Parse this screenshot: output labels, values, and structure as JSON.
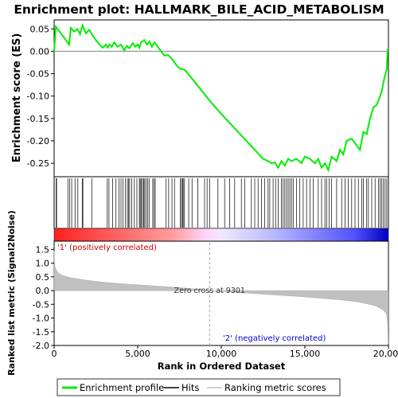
{
  "chart_data": [
    {
      "type": "line",
      "title": "Enrichment plot: HALLMARK_BILE_ACID_METABOLISM",
      "ylabel": "Enrichment score (ES)",
      "ylim": [
        -0.28,
        0.07
      ],
      "yticks": [
        0.05,
        0.0,
        -0.05,
        -0.1,
        -0.15,
        -0.2,
        -0.25
      ],
      "ytick_labels": [
        "0.05",
        "0.00",
        "-0.05",
        "-0.10",
        "-0.15",
        "-0.20",
        "-0.25"
      ],
      "xlim": [
        0,
        20000
      ],
      "line_color": "#00ee00",
      "series": [
        {
          "name": "Enrichment profile",
          "x": [
            0,
            100,
            500,
            900,
            1000,
            1200,
            1400,
            1550,
            1700,
            1900,
            2100,
            2300,
            2600,
            2900,
            3100,
            3200,
            3300,
            3450,
            3600,
            3800,
            4000,
            4200,
            4350,
            4500,
            4700,
            4850,
            5000,
            5100,
            5200,
            5400,
            5550,
            5700,
            5850,
            6000,
            6200,
            6400,
            6600,
            6800,
            7000,
            7200,
            7400,
            7600,
            7750,
            7900,
            9301,
            10000,
            11000,
            12000,
            12500,
            12800,
            13000,
            13200,
            13400,
            13600,
            13800,
            14000,
            14200,
            14500,
            14800,
            15000,
            15300,
            15600,
            15800,
            16000,
            16200,
            16400,
            16600,
            16900,
            17100,
            17300,
            17500,
            17800,
            18100,
            18300,
            18500,
            18700,
            18900,
            19100,
            19300,
            19450,
            19600,
            19750,
            19900,
            19950
          ],
          "y": [
            0.0,
            0.055,
            0.035,
            0.015,
            0.052,
            0.044,
            0.05,
            0.038,
            0.058,
            0.04,
            0.048,
            0.035,
            0.02,
            0.008,
            0.015,
            0.008,
            0.015,
            0.01,
            0.02,
            0.01,
            0.015,
            0.002,
            0.012,
            0.007,
            0.018,
            0.01,
            0.015,
            0.008,
            0.02,
            0.025,
            0.015,
            0.022,
            0.01,
            0.02,
            0.01,
            0.0,
            -0.01,
            -0.008,
            -0.015,
            -0.025,
            -0.035,
            -0.04,
            -0.04,
            -0.045,
            -0.11,
            -0.14,
            -0.18,
            -0.22,
            -0.24,
            -0.245,
            -0.25,
            -0.248,
            -0.26,
            -0.245,
            -0.255,
            -0.24,
            -0.245,
            -0.24,
            -0.25,
            -0.235,
            -0.24,
            -0.25,
            -0.24,
            -0.26,
            -0.25,
            -0.265,
            -0.235,
            -0.245,
            -0.22,
            -0.23,
            -0.2,
            -0.195,
            -0.21,
            -0.22,
            -0.18,
            -0.185,
            -0.15,
            -0.125,
            -0.12,
            -0.105,
            -0.09,
            -0.06,
            -0.04,
            0.005
          ]
        }
      ]
    },
    {
      "type": "scatter",
      "series": [
        {
          "name": "Hits",
          "x": [
            120,
            150,
            820,
            920,
            1050,
            1250,
            1420,
            1680,
            1720,
            2250,
            3180,
            3280,
            3500,
            3700,
            3880,
            4000,
            4120,
            4260,
            4380,
            4450,
            4520,
            4650,
            4800,
            4950,
            5100,
            5150,
            5220,
            5290,
            5350,
            5420,
            5500,
            5600,
            5680,
            5900,
            5980,
            6050,
            6700,
            6850,
            7050,
            7200,
            7550,
            7620,
            7680,
            7720,
            7800,
            8050,
            8250,
            8600,
            9000,
            9150,
            9300,
            9800,
            10200,
            10500,
            10800,
            11200,
            11400,
            11800,
            12000,
            12200,
            12400,
            12600,
            12800,
            12900,
            13100,
            13250,
            13400,
            13600,
            13700,
            13800,
            13900,
            14000,
            14100,
            14200,
            14300,
            14500,
            14700,
            14900,
            15100,
            15300,
            15500,
            15800,
            16000,
            16200,
            16300,
            16450,
            16600,
            16900,
            17200,
            17400,
            17600,
            17800,
            18000,
            18200,
            18400,
            18500,
            18700,
            18800,
            19000,
            19200,
            19400,
            19500,
            19600,
            19700,
            19800,
            19900
          ]
        }
      ]
    },
    {
      "type": "area",
      "ylabel": "Ranked list metric (Signal2Noise)",
      "xlabel": "Rank in Ordered Dataset",
      "ylim": [
        -2.0,
        1.8
      ],
      "xlim": [
        0,
        20000
      ],
      "yticks": [
        1.5,
        1.0,
        0.5,
        0.0,
        -0.5,
        -1.0,
        -1.5,
        -2.0
      ],
      "ytick_labels": [
        "1.5",
        "1.0",
        "0.5",
        "0.0",
        "-0.5",
        "-1.0",
        "-1.5",
        "-2.0"
      ],
      "xticks": [
        0,
        5000,
        10000,
        15000,
        20000
      ],
      "xtick_labels": [
        "0",
        "5,000",
        "10,000",
        "15,000",
        "20,000"
      ],
      "fill_color": "#c0c0c0",
      "series": [
        {
          "name": "Ranking metric scores",
          "x": [
            0,
            20,
            60,
            150,
            300,
            500,
            1000,
            2000,
            3000,
            4000,
            5000,
            6000,
            7000,
            8000,
            9301,
            10000,
            11000,
            12000,
            13000,
            14000,
            15000,
            16000,
            17000,
            18000,
            18500,
            19000,
            19300,
            19500,
            19700,
            19850,
            19920,
            19960,
            19990
          ],
          "y": [
            1.45,
            1.05,
            0.85,
            0.72,
            0.62,
            0.55,
            0.47,
            0.37,
            0.3,
            0.25,
            0.21,
            0.17,
            0.13,
            0.08,
            0.0,
            -0.03,
            -0.07,
            -0.11,
            -0.15,
            -0.19,
            -0.23,
            -0.28,
            -0.33,
            -0.4,
            -0.45,
            -0.52,
            -0.58,
            -0.64,
            -0.72,
            -0.82,
            -1.0,
            -1.35,
            -1.95
          ]
        }
      ],
      "annotations": {
        "zero_cross": "Zero cross at 9301",
        "zero_cross_x": 9301,
        "positive_label": "'1' (positively correlated)",
        "negative_label": "'2' (negatively correlated)"
      }
    }
  ],
  "legend": {
    "items": [
      {
        "label": "Enrichment profile",
        "color": "#00ee00"
      },
      {
        "label": "Hits",
        "color": "#000000"
      },
      {
        "label": "Ranking metric scores",
        "color": "#c0c0c0"
      }
    ]
  }
}
